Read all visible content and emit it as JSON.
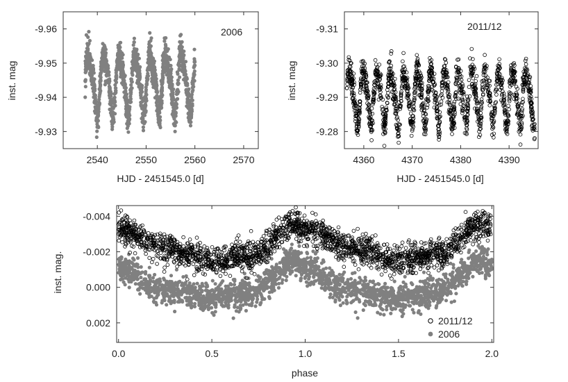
{
  "chart_data": [
    {
      "type": "scatter",
      "panel": "top-left",
      "label": "2006",
      "xlabel": "HJD - 2451545.0 [d]",
      "ylabel": "inst. mag",
      "xlim": [
        2533,
        2573
      ],
      "ylim": [
        -9.965,
        -9.925
      ],
      "y_inverted": true,
      "xticks": [
        2540,
        2550,
        2560,
        2570
      ],
      "xtick_labels": [
        "2540",
        "2550",
        "2560",
        "2570"
      ],
      "yticks": [
        -9.96,
        -9.95,
        -9.94,
        -9.93
      ],
      "ytick_labels": [
        "-9.96",
        "-9.95",
        "-9.94",
        "-9.93"
      ],
      "series": [
        {
          "name": "2006",
          "marker": "filled",
          "color": "#808080",
          "x_range": [
            2537.5,
            2560
          ],
          "period_days": 3.175,
          "mean": -9.9445,
          "amplitude": 0.0095,
          "scatter": 0.004
        }
      ]
    },
    {
      "type": "scatter",
      "panel": "top-right",
      "label": "2011/12",
      "xlabel": "HJD - 2451545.0 [d]",
      "ylabel": "inst. mag",
      "xlim": [
        4356,
        4396
      ],
      "ylim": [
        -9.315,
        -9.275
      ],
      "y_inverted": true,
      "xticks": [
        4360,
        4370,
        4380,
        4390
      ],
      "xtick_labels": [
        "4360",
        "4370",
        "4380",
        "4390"
      ],
      "yticks": [
        -9.31,
        -9.3,
        -9.29,
        -9.28
      ],
      "ytick_labels": [
        "-9.31",
        "-9.30",
        "-9.29",
        "-9.28"
      ],
      "series": [
        {
          "name": "2011/12",
          "marker": "open",
          "color": "#000000",
          "x_range": [
            4356.5,
            4395.3
          ],
          "period_days": 2.8,
          "mean": -9.2905,
          "amplitude": 0.0085,
          "scatter": 0.004
        }
      ]
    },
    {
      "type": "scatter",
      "panel": "bottom",
      "xlabel": "phase",
      "ylabel": "inst. mag.",
      "xlim": [
        -0.01,
        2.01
      ],
      "ylim": [
        -0.0046,
        0.0031
      ],
      "y_inverted": true,
      "xticks": [
        0.0,
        0.5,
        1.0,
        1.5,
        2.0
      ],
      "xtick_labels": [
        "0.0",
        "0.5",
        "1.0",
        "1.5",
        "2.0"
      ],
      "yticks": [
        -0.004,
        -0.002,
        0.0,
        0.002
      ],
      "ytick_labels": [
        "-0.004",
        "-0.002",
        "0.000",
        "0.002"
      ],
      "legend_position": "bottom-right",
      "series": [
        {
          "name": "2011/12",
          "marker": "open",
          "color": "#000000",
          "curve": [
            [
              0.0,
              -0.0033
            ],
            [
              0.25,
              -0.0022
            ],
            [
              0.5,
              -0.0015
            ],
            [
              0.7,
              -0.0018
            ],
            [
              0.95,
              -0.0036
            ],
            [
              1.0,
              -0.0033
            ],
            [
              1.25,
              -0.0022
            ],
            [
              1.5,
              -0.0015
            ],
            [
              1.7,
              -0.0018
            ],
            [
              1.95,
              -0.0036
            ],
            [
              2.0,
              -0.0033
            ]
          ],
          "scatter": 0.0004
        },
        {
          "name": "2006",
          "marker": "filled",
          "color": "#808080",
          "curve": [
            [
              0.0,
              -0.0011
            ],
            [
              0.25,
              0.0002
            ],
            [
              0.5,
              0.0006
            ],
            [
              0.7,
              0.0003
            ],
            [
              0.95,
              -0.0015
            ],
            [
              1.0,
              -0.0011
            ],
            [
              1.25,
              0.0002
            ],
            [
              1.5,
              0.0006
            ],
            [
              1.7,
              0.0003
            ],
            [
              1.95,
              -0.0015
            ],
            [
              2.0,
              -0.0011
            ]
          ],
          "scatter": 0.0004
        }
      ]
    }
  ]
}
